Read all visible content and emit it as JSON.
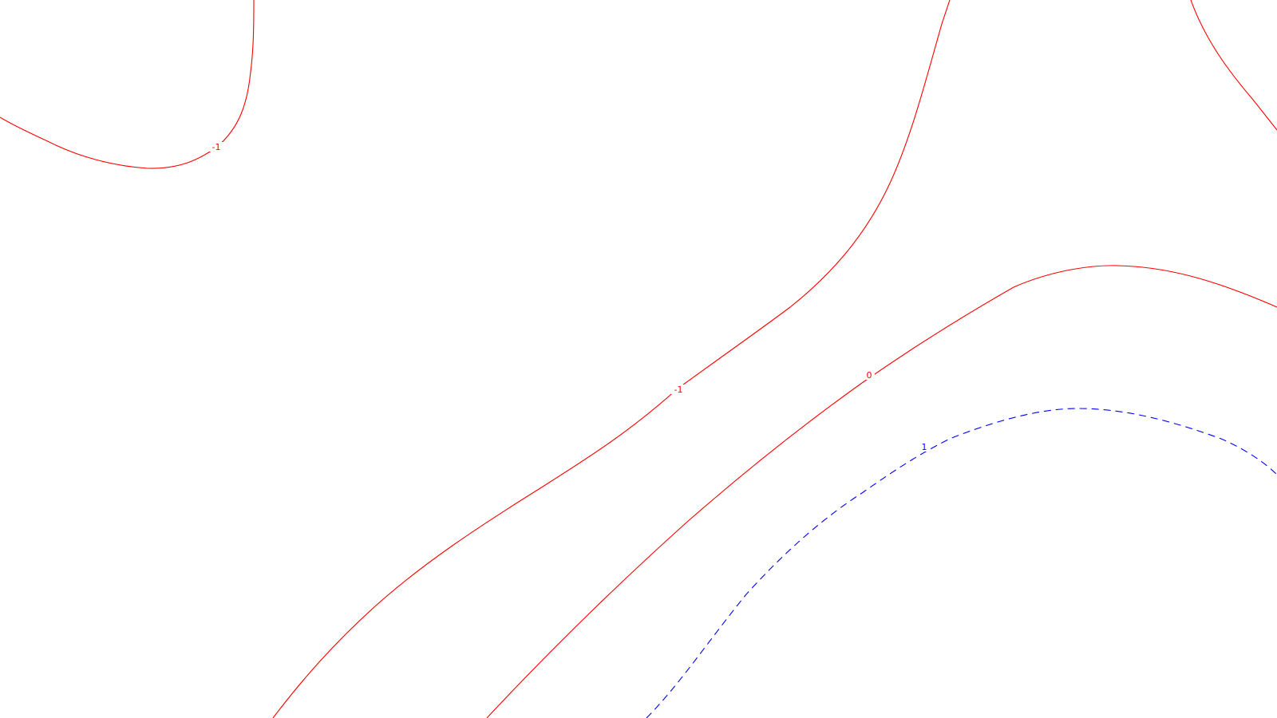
{
  "map": {
    "contours": [
      {
        "id": "contour-neg1-upper-left",
        "level": "-1",
        "color": "#ff0000",
        "style": "solid"
      },
      {
        "id": "contour-neg1-central",
        "level": "-1",
        "color": "#ff0000",
        "style": "solid"
      },
      {
        "id": "contour-0",
        "level": "0",
        "color": "#ff0000",
        "style": "solid"
      },
      {
        "id": "contour-0-upper-right",
        "level": "0",
        "color": "#ff0000",
        "style": "solid"
      },
      {
        "id": "contour-1",
        "level": "1",
        "color": "#0000ff",
        "style": "dashed"
      }
    ],
    "labels": [
      {
        "id": "label-neg1-upper-left",
        "text": "-1",
        "color": "#ff0000"
      },
      {
        "id": "label-neg1-central",
        "text": "-1",
        "color": "#ff0000"
      },
      {
        "id": "label-0",
        "text": "0",
        "color": "#ff0000"
      },
      {
        "id": "label-1",
        "text": "1",
        "color": "#0000ff"
      }
    ]
  }
}
